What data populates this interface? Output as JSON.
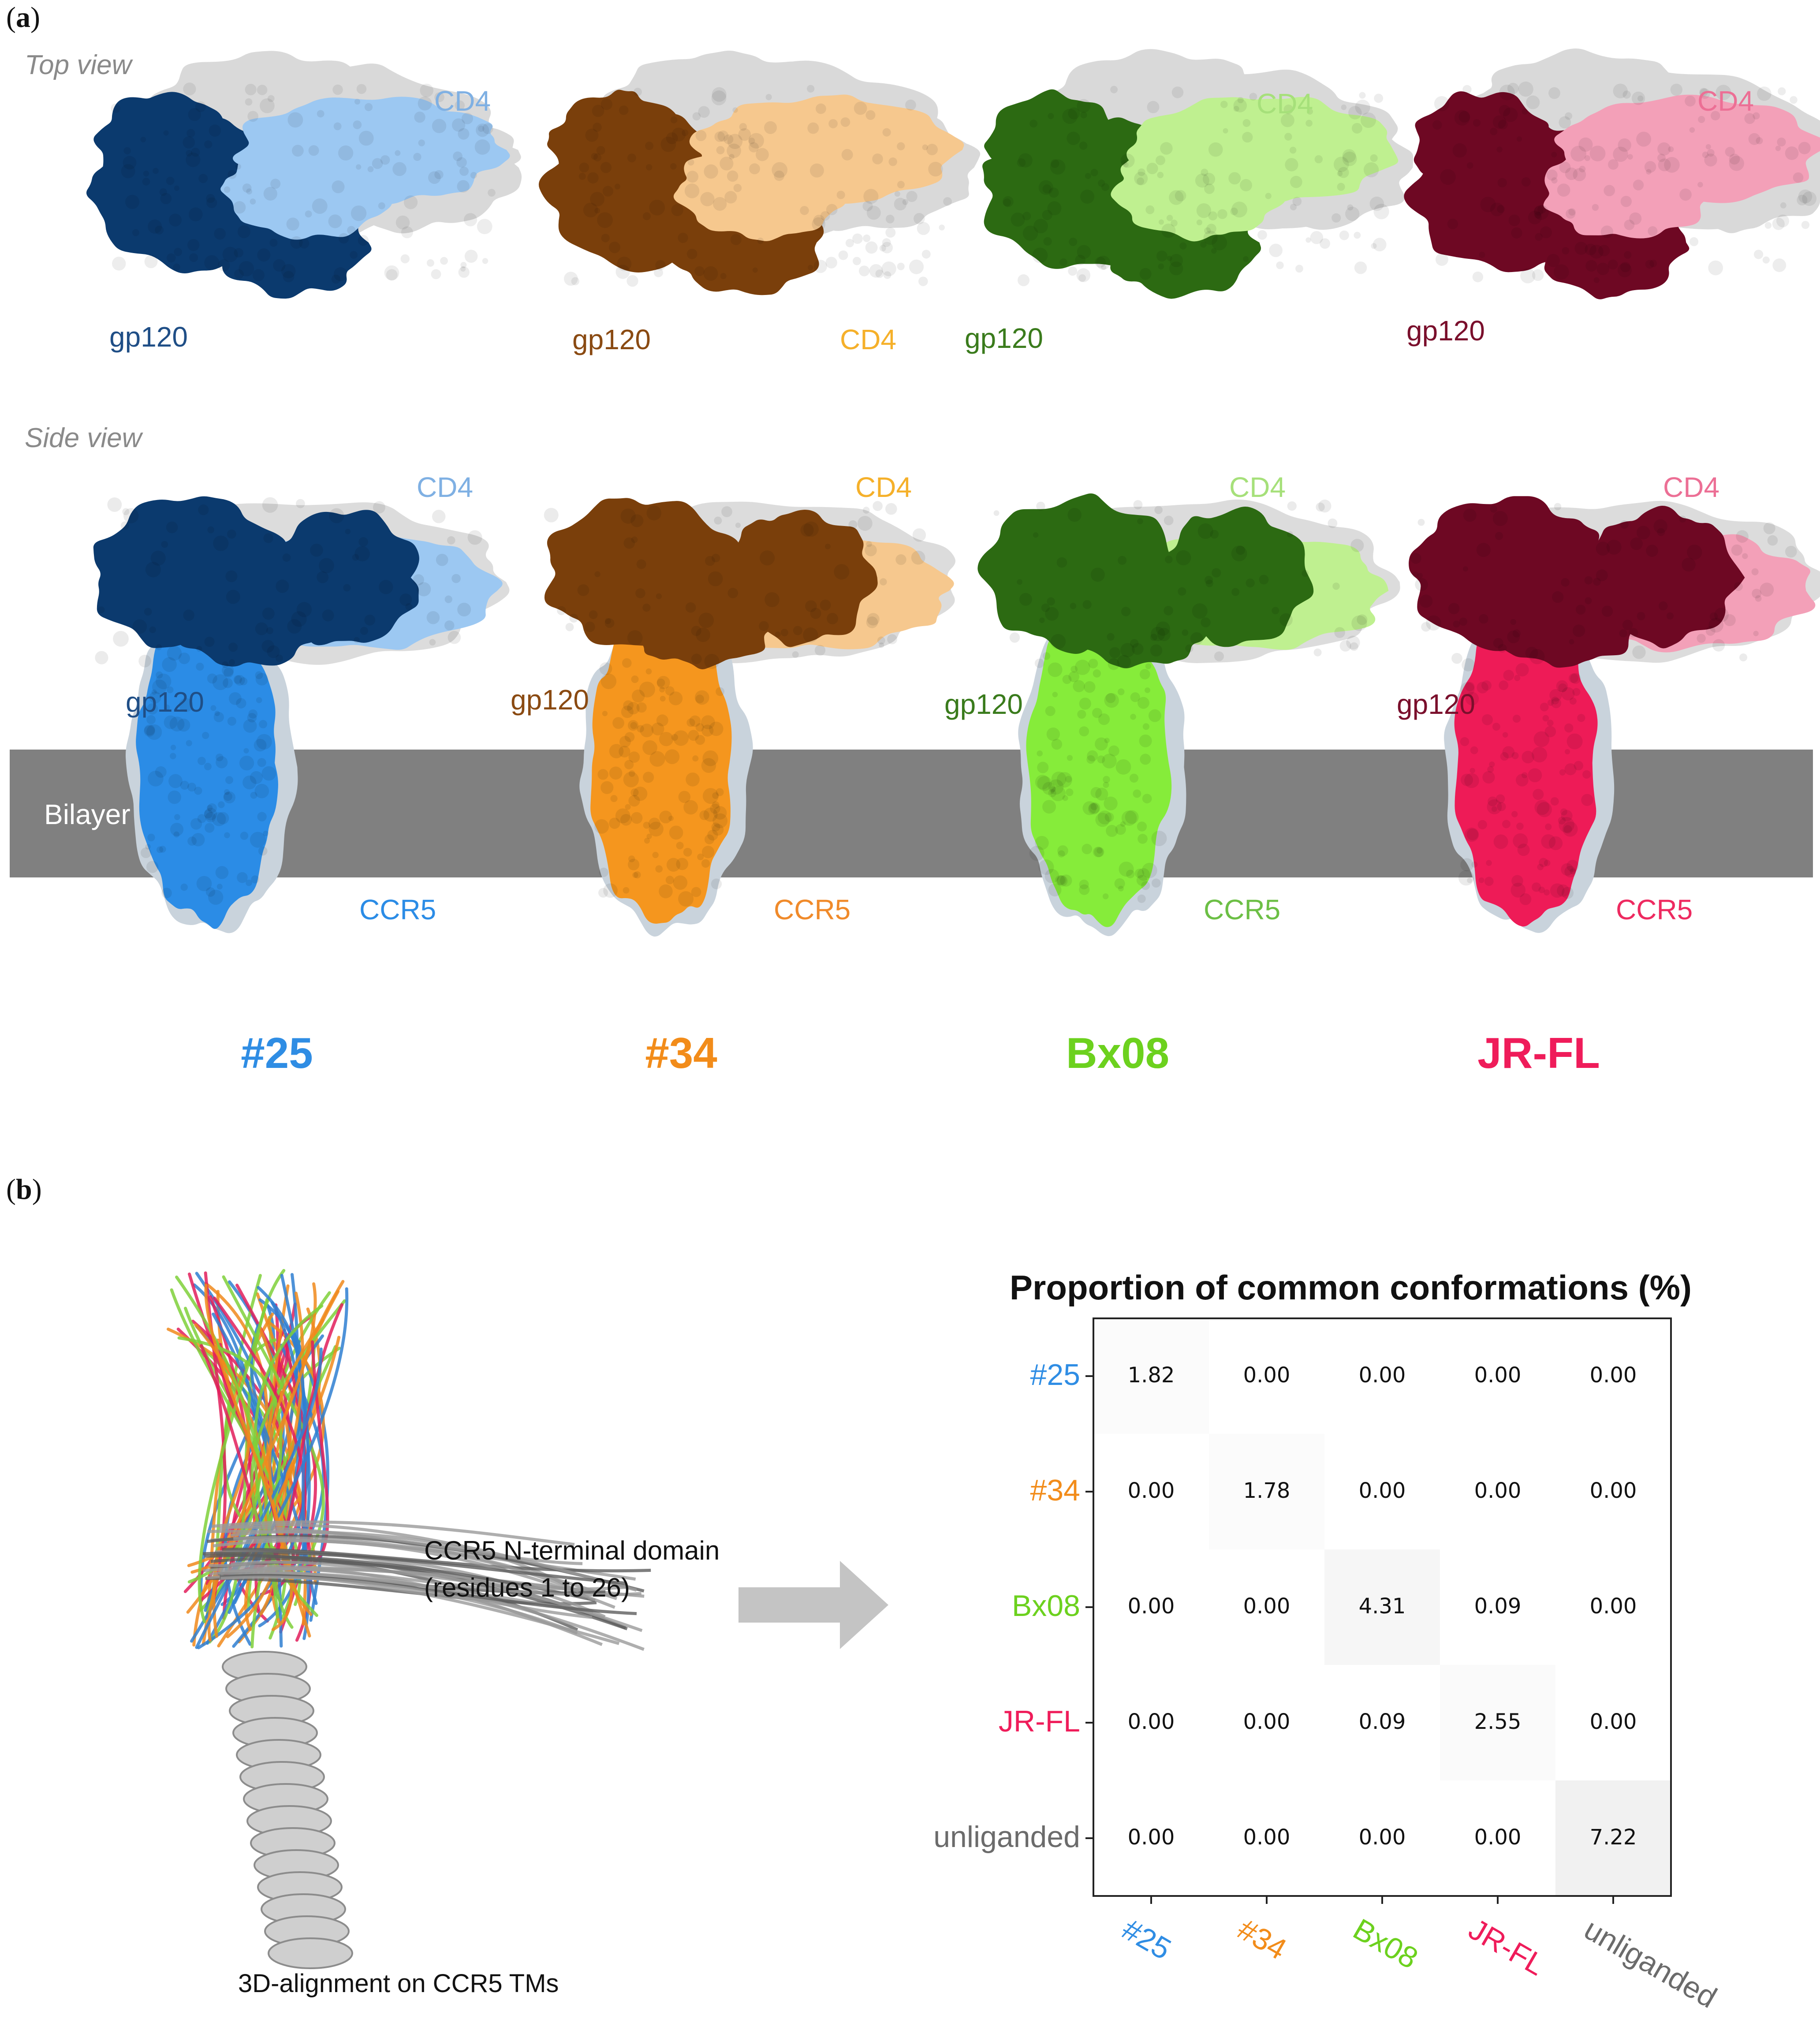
{
  "panel_a": {
    "letter_prefix": "(",
    "letter": "a",
    "letter_suffix": ")",
    "top_view_label": "Top view",
    "side_view_label": "Side view",
    "bilayer_label": "Bilayer",
    "variants": [
      {
        "name": "#25",
        "color": "#2f8de4",
        "gp120_color": "#0b3a6e",
        "gp120_label_color": "#1f4e86",
        "cd4_color": "#9cc8f2",
        "cd4_label_color": "#7fb0e3",
        "ccr5_color": "#2b8ce6",
        "ccr5_label_color": "#2b8ce6",
        "labels": {
          "cd4_top": "CD4",
          "gp120_top": "gp120",
          "cd4_side": "CD4",
          "gp120_side": "gp120",
          "ccr5": "CCR5"
        }
      },
      {
        "name": "#34",
        "color": "#f28c1a",
        "gp120_color": "#7a3f0b",
        "gp120_label_color": "#8a4a12",
        "cd4_color": "#f6c88e",
        "cd4_label_color": "#f5b02a",
        "ccr5_color": "#f5961e",
        "ccr5_label_color": "#f08a2a",
        "labels": {
          "cd4_top": "CD4",
          "gp120_top": "gp120",
          "cd4_side": "CD4",
          "gp120_side": "gp120",
          "ccr5": "CCR5"
        }
      },
      {
        "name": "Bx08",
        "color": "#6cd11e",
        "gp120_color": "#2c6a12",
        "gp120_label_color": "#3a7b1c",
        "cd4_color": "#bff090",
        "cd4_label_color": "#a6e07a",
        "ccr5_color": "#86ec3a",
        "ccr5_label_color": "#6cbf45",
        "labels": {
          "cd4_top": "CD4",
          "gp120_top": "gp120",
          "cd4_side": "CD4",
          "gp120_side": "gp120",
          "ccr5": "CCR5"
        }
      },
      {
        "name": "JR-FL",
        "color": "#ef1c5a",
        "gp120_color": "#6e0823",
        "gp120_label_color": "#7a0f2c",
        "cd4_color": "#f3a0b8",
        "cd4_label_color": "#ec6f95",
        "ccr5_color": "#ee1b57",
        "ccr5_label_color": "#ee2a60",
        "labels": {
          "cd4_top": "CD4",
          "gp120_top": "gp120",
          "cd4_side": "CD4",
          "gp120_side": "gp120",
          "ccr5": "CCR5"
        }
      }
    ]
  },
  "panel_b": {
    "letter_prefix": "(",
    "letter": "b",
    "letter_suffix": ")",
    "annotation_line1": "CCR5 N-terminal domain",
    "annotation_line2": "(residues 1 to 26)",
    "alignment_caption": "3D-alignment on CCR5 TMs"
  },
  "chart_data": {
    "type": "heatmap",
    "title": "Proportion of common conformations (%)",
    "rows": [
      "#25",
      "#34",
      "Bx08",
      "JR-FL",
      "unliganded"
    ],
    "columns": [
      "#25",
      "#34",
      "Bx08",
      "JR-FL",
      "unliganded"
    ],
    "label_colors": [
      "#2f8de4",
      "#f28c1a",
      "#6cd11e",
      "#ef1c5a",
      "#6b6b6b"
    ],
    "values": [
      [
        "1.82",
        "0.00",
        "0.00",
        "0.00",
        "0.00"
      ],
      [
        "0.00",
        "1.78",
        "0.00",
        "0.00",
        "0.00"
      ],
      [
        "0.00",
        "0.00",
        "4.31",
        "0.09",
        "0.00"
      ],
      [
        "0.00",
        "0.00",
        "0.09",
        "2.55",
        "0.00"
      ],
      [
        "0.00",
        "0.00",
        "0.00",
        "0.00",
        "7.22"
      ]
    ],
    "vmax": 30
  }
}
